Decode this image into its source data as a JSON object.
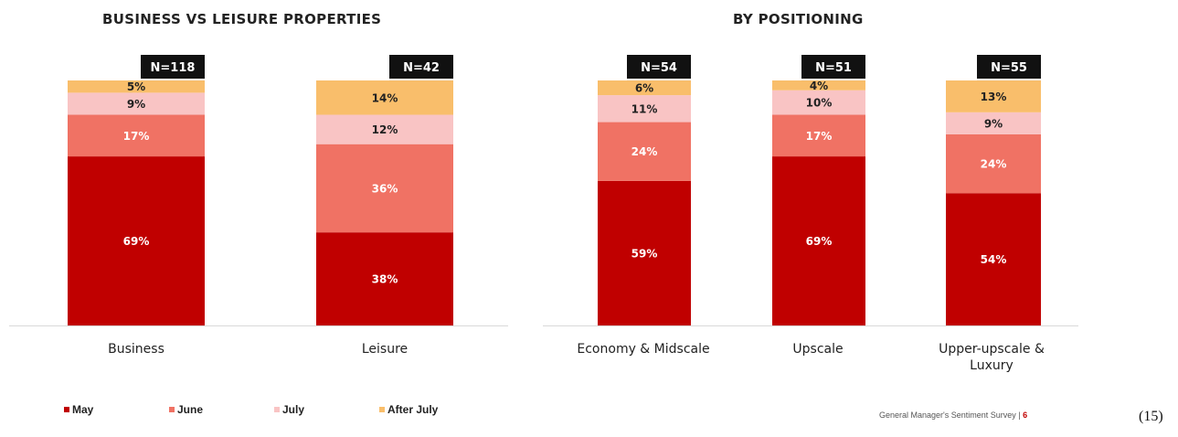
{
  "chart_data": [
    {
      "type": "bar",
      "stacked": true,
      "title": "BUSINESS VS LEISURE PROPERTIES",
      "categories": [
        "Business",
        "Leisure"
      ],
      "n_labels": [
        "N=118",
        "N=42"
      ],
      "series": [
        {
          "name": "May",
          "values": [
            69,
            38
          ],
          "labels": [
            "69%",
            "38%"
          ]
        },
        {
          "name": "June",
          "values": [
            17,
            36
          ],
          "labels": [
            "17%",
            "36%"
          ]
        },
        {
          "name": "July",
          "values": [
            9,
            12
          ],
          "labels": [
            "9%",
            "12%"
          ]
        },
        {
          "name": "After July",
          "values": [
            5,
            14
          ],
          "labels": [
            "5%",
            "14%"
          ]
        }
      ],
      "ylim": [
        0,
        100
      ],
      "grid": false
    },
    {
      "type": "bar",
      "stacked": true,
      "title": "BY POSITIONING",
      "categories": [
        "Economy & Midscale",
        "Upscale",
        "Upper-upscale & Luxury"
      ],
      "category_lines": [
        [
          "Economy & Midscale"
        ],
        [
          "Upscale"
        ],
        [
          "Upper-upscale &",
          "Luxury"
        ]
      ],
      "n_labels": [
        "N=54",
        "N=51",
        "N=55"
      ],
      "series": [
        {
          "name": "May",
          "values": [
            59,
            69,
            54
          ],
          "labels": [
            "59%",
            "69%",
            "54%"
          ]
        },
        {
          "name": "June",
          "values": [
            24,
            17,
            24
          ],
          "labels": [
            "24%",
            "17%",
            "24%"
          ]
        },
        {
          "name": "July",
          "values": [
            11,
            10,
            9
          ],
          "labels": [
            "11%",
            "10%",
            "9%"
          ]
        },
        {
          "name": "After July",
          "values": [
            6,
            4,
            13
          ],
          "labels": [
            "6%",
            "4%",
            "13%"
          ]
        }
      ],
      "ylim": [
        0,
        100
      ],
      "grid": false
    }
  ],
  "colors": {
    "May": "#c00000",
    "June": "#f07264",
    "July": "#f9c4c4",
    "After July": "#f9be6b",
    "n_box": "#111111",
    "n_text": "#ffffff",
    "label_dark": "#222222",
    "label_light": "#ffffff"
  },
  "legend": {
    "position": "bottom-left",
    "items": [
      {
        "label": "May",
        "color": "#c00000"
      },
      {
        "label": "June",
        "color": "#f07264"
      },
      {
        "label": "July",
        "color": "#f9c4c4"
      },
      {
        "label": "After July",
        "color": "#f9be6b"
      }
    ]
  },
  "footer": {
    "text": "General Manager's Sentiment Survey | ",
    "page": "6"
  },
  "side_number": "(15)"
}
